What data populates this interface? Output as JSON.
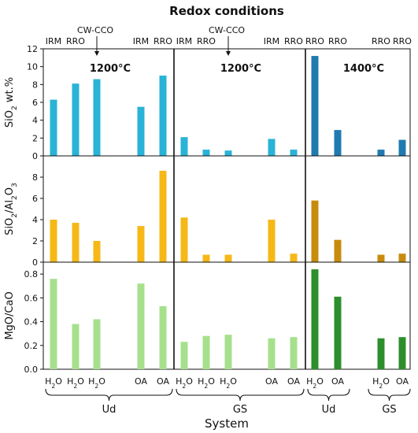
{
  "chart_data": {
    "type": "bar",
    "title": "Redox conditions",
    "xlabel": "System",
    "cw_cco_label": "CW-CCO",
    "temperature_labels": [
      "1200°C",
      "1200°C",
      "1400°C"
    ],
    "redox_labels": [
      "IRM",
      "RRO",
      "",
      "IRM",
      "RRO",
      "IRM",
      "RRO",
      "",
      "IRM",
      "RRO",
      "RRO",
      "RRO",
      "RRO",
      "RRO"
    ],
    "sample_labels": [
      "H2O",
      "H2O",
      "H2O",
      "OA",
      "OA",
      "H2O",
      "H2O",
      "H2O",
      "OA",
      "OA",
      "H2O",
      "OA",
      "H2O",
      "OA"
    ],
    "group_labels": [
      "Ud",
      "GS",
      "Ud",
      "GS"
    ],
    "panels": [
      {
        "ylabel": "SiO2 wt.%",
        "ylim": [
          0,
          12
        ],
        "yticks": [
          "0",
          "2",
          "4",
          "6",
          "8",
          "10",
          "12"
        ],
        "colors": [
          "#29b3d6",
          "#1f7ab0"
        ],
        "values": [
          6.3,
          8.1,
          8.6,
          5.5,
          9.0,
          2.1,
          0.7,
          0.6,
          1.9,
          0.7,
          11.2,
          2.9,
          0.7,
          1.8
        ]
      },
      {
        "ylabel": "SiO2/Al2O3",
        "ylim": [
          0,
          10
        ],
        "yticks": [
          "0",
          "2",
          "4",
          "6",
          "8"
        ],
        "colors": [
          "#f6b817",
          "#c78b0e"
        ],
        "values": [
          4.0,
          3.7,
          2.0,
          3.4,
          8.6,
          4.2,
          0.7,
          0.7,
          4.0,
          0.8,
          5.8,
          2.1,
          0.7,
          0.8
        ]
      },
      {
        "ylabel": "MgO/CaO",
        "ylim": [
          0,
          0.9
        ],
        "yticks": [
          "0.0",
          "0.2",
          "0.4",
          "0.6",
          "0.8"
        ],
        "colors": [
          "#a6e08c",
          "#2c8f2c"
        ],
        "values": [
          0.76,
          0.38,
          0.42,
          0.72,
          0.53,
          0.23,
          0.28,
          0.29,
          0.26,
          0.27,
          0.84,
          0.61,
          0.26,
          0.27
        ]
      }
    ]
  }
}
